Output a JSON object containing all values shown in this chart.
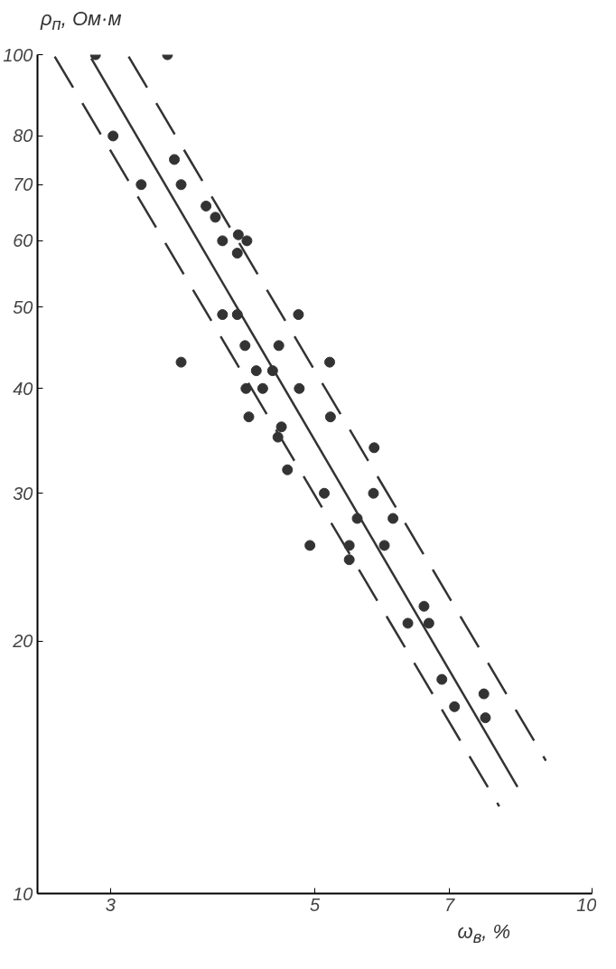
{
  "chart_data": {
    "type": "scatter",
    "xlabel": "ω$_{в}$, %",
    "ylabel": "ρ$_{п}$, Ом·м",
    "log": "xy",
    "grid": false,
    "xlim": [
      2.5,
      10
    ],
    "ylim": [
      10,
      100
    ],
    "xticks": [
      3,
      5,
      7,
      10
    ],
    "yticks": [
      10,
      20,
      30,
      40,
      50,
      60,
      70,
      80,
      100
    ],
    "series": [
      {
        "marker": "circle",
        "color": "#333333",
        "x": [
          2.89,
          3.46,
          3.02,
          3.24,
          3.52,
          3.58,
          3.81,
          3.9,
          3.97,
          4.13,
          4.22,
          4.12,
          3.97,
          4.12,
          4.8,
          3.58,
          4.2,
          4.57,
          4.32,
          4.5,
          5.19,
          4.21,
          4.39,
          4.81,
          4.24,
          5.2,
          4.6,
          4.56,
          5.8,
          4.67,
          5.12,
          5.79,
          5.56,
          6.08,
          5.45,
          5.95,
          4.94,
          5.45,
          6.31,
          6.57,
          6.65,
          6.87,
          7.09,
          7.63,
          7.66
        ],
        "values": [
          100,
          100,
          80,
          70,
          75,
          70,
          66,
          64,
          60,
          61,
          60,
          58,
          49,
          49,
          49,
          43,
          45,
          45,
          42,
          42,
          43,
          40,
          40,
          40,
          37,
          37,
          36,
          35,
          34,
          32,
          30,
          30,
          28,
          28,
          26,
          26,
          26,
          25,
          21,
          22,
          21,
          18,
          16.7,
          17.3,
          16.2
        ]
      },
      {
        "type": "line",
        "color": "#333333",
        "line_style": "solid",
        "marker": "none",
        "x": [
          2.86,
          8.3
        ],
        "values": [
          99,
          13.4
        ]
      },
      {
        "type": "line",
        "color": "#333333",
        "line_style": "dashed",
        "marker": "none",
        "x": [
          3.14,
          8.91
        ],
        "values": [
          99.5,
          14.4
        ]
      },
      {
        "type": "line",
        "color": "#333333",
        "line_style": "dashed",
        "marker": "none",
        "x": [
          2.61,
          7.93
        ],
        "values": [
          99.5,
          12.7
        ]
      }
    ]
  }
}
